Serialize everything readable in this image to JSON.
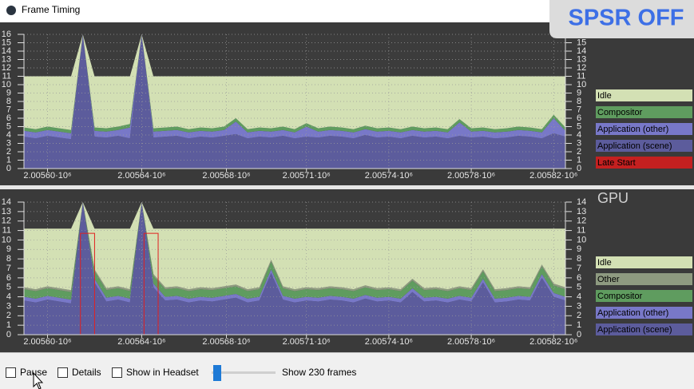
{
  "window": {
    "title": "Frame Timing"
  },
  "overlay": "SPSR OFF",
  "controls": {
    "pause": "Pause",
    "details": "Details",
    "show_in_headset": "Show in Headset",
    "frames": "Show 230 frames"
  },
  "chart_data": [
    {
      "type": "area",
      "stacked": true,
      "grid": true,
      "legend": "right",
      "xlim": [
        2005590,
        2005820
      ],
      "ylim": [
        0,
        16
      ],
      "yticks": [
        0,
        1,
        2,
        3,
        4,
        5,
        6,
        7,
        8,
        9,
        10,
        11,
        12,
        13,
        14,
        15,
        16
      ],
      "xticks": [
        {
          "value": 2005600,
          "label": "2.00560·10⁶"
        },
        {
          "value": 2005640,
          "label": "2.00564·10⁶"
        },
        {
          "value": 2005676,
          "label": "2.00568·10⁶"
        },
        {
          "value": 2005710,
          "label": "2.00571·10⁶"
        },
        {
          "value": 2005745,
          "label": "2.00574·10⁶"
        },
        {
          "value": 2005780,
          "label": "2.00578·10⁶"
        },
        {
          "value": 2005815,
          "label": "2.00582·10⁶"
        }
      ],
      "x": [
        2005590,
        2005595,
        2005600,
        2005605,
        2005610,
        2005615,
        2005620,
        2005625,
        2005630,
        2005635,
        2005640,
        2005645,
        2005650,
        2005655,
        2005660,
        2005665,
        2005670,
        2005675,
        2005680,
        2005685,
        2005690,
        2005695,
        2005700,
        2005705,
        2005710,
        2005715,
        2005720,
        2005725,
        2005730,
        2005735,
        2005740,
        2005745,
        2005750,
        2005755,
        2005760,
        2005765,
        2005770,
        2005775,
        2005780,
        2005785,
        2005790,
        2005795,
        2005800,
        2005805,
        2005810,
        2005815,
        2005820
      ],
      "series": [
        {
          "name": "Idle",
          "color": "#d3e0b4",
          "values": [
            6.1,
            6.3,
            6.0,
            6.2,
            6.4,
            0,
            6.1,
            6.2,
            6.0,
            5.7,
            0,
            6.2,
            6.1,
            6.0,
            6.3,
            6.1,
            6.2,
            6.0,
            5.0,
            6.3,
            6.1,
            6.2,
            6.0,
            6.3,
            5.6,
            6.2,
            6.0,
            6.1,
            6.3,
            5.9,
            6.2,
            6.1,
            6.3,
            6.0,
            6.2,
            6.1,
            6.3,
            5.1,
            6.2,
            6.1,
            6.3,
            6.2,
            6.0,
            6.1,
            6.3,
            4.6,
            6.1
          ]
        },
        {
          "name": "Compositor",
          "color": "#5f9c5f",
          "values": [
            0.4,
            0.4,
            0.4,
            0.4,
            0.4,
            0,
            0.4,
            0.4,
            0.4,
            0.4,
            0,
            0.4,
            0.4,
            0.4,
            0.4,
            0.4,
            0.4,
            0.4,
            0.4,
            0.4,
            0.4,
            0.4,
            0.4,
            0.4,
            0.4,
            0.4,
            0.4,
            0.4,
            0.4,
            0.4,
            0.4,
            0.4,
            0.4,
            0.4,
            0.4,
            0.4,
            0.4,
            0.4,
            0.4,
            0.4,
            0.4,
            0.4,
            0.4,
            0.4,
            0.4,
            0.4,
            0.4
          ]
        },
        {
          "name": "Application (other)",
          "color": "#7878c8",
          "values": [
            0.7,
            0.7,
            0.7,
            0.7,
            0.7,
            0,
            0.7,
            0.7,
            0.7,
            1.3,
            0,
            0.7,
            0.7,
            0.7,
            0.7,
            0.7,
            0.7,
            0.7,
            1.5,
            0.7,
            0.7,
            0.7,
            0.7,
            0.7,
            1.2,
            0.7,
            0.7,
            0.7,
            0.7,
            0.7,
            0.7,
            0.7,
            0.7,
            0.7,
            0.7,
            0.7,
            0.7,
            1.6,
            0.7,
            0.7,
            0.7,
            0.7,
            0.7,
            0.7,
            0.7,
            1.8,
            0.7
          ]
        },
        {
          "name": "Application (scene)",
          "color": "#5c5c9c",
          "values": [
            3.8,
            3.6,
            3.9,
            3.7,
            3.5,
            16,
            3.8,
            3.7,
            3.9,
            3.6,
            16,
            3.7,
            3.8,
            3.9,
            3.6,
            3.8,
            3.7,
            3.9,
            4.1,
            3.6,
            3.8,
            3.7,
            3.9,
            3.6,
            3.8,
            3.7,
            3.9,
            3.8,
            3.6,
            4.0,
            3.7,
            3.8,
            3.6,
            3.9,
            3.7,
            3.8,
            3.6,
            3.9,
            3.7,
            3.8,
            3.6,
            3.7,
            3.9,
            3.8,
            3.6,
            4.2,
            3.8
          ]
        },
        {
          "name": "Late Start",
          "color": "#c42020",
          "values": [
            0,
            0,
            0,
            0,
            0,
            0,
            0,
            0,
            0,
            0,
            0,
            0,
            0,
            0,
            0,
            0,
            0,
            0,
            0,
            0,
            0,
            0,
            0,
            0,
            0,
            0,
            0,
            0,
            0,
            0,
            0,
            0,
            0,
            0,
            0,
            0,
            0,
            0,
            0,
            0,
            0,
            0,
            0,
            0,
            0,
            0,
            0
          ]
        }
      ]
    },
    {
      "type": "area",
      "stacked": true,
      "grid": true,
      "legend": "right",
      "title": "GPU",
      "xlim": [
        2005590,
        2005820
      ],
      "ylim": [
        0,
        14
      ],
      "yticks": [
        0,
        1,
        2,
        3,
        4,
        5,
        6,
        7,
        8,
        9,
        10,
        11,
        12,
        13,
        14
      ],
      "xticks": [
        {
          "value": 2005600,
          "label": "2.00560·10⁶"
        },
        {
          "value": 2005640,
          "label": "2.00564·10⁶"
        },
        {
          "value": 2005676,
          "label": "2.00568·10⁶"
        },
        {
          "value": 2005710,
          "label": "2.00571·10⁶"
        },
        {
          "value": 2005745,
          "label": "2.00574·10⁶"
        },
        {
          "value": 2005780,
          "label": "2.00578·10⁶"
        },
        {
          "value": 2005815,
          "label": "2.00582·10⁶"
        }
      ],
      "x": [
        2005590,
        2005595,
        2005600,
        2005605,
        2005610,
        2005615,
        2005620,
        2005625,
        2005630,
        2005635,
        2005640,
        2005645,
        2005650,
        2005655,
        2005660,
        2005665,
        2005670,
        2005675,
        2005680,
        2005685,
        2005690,
        2005695,
        2005700,
        2005705,
        2005710,
        2005715,
        2005720,
        2005725,
        2005730,
        2005735,
        2005740,
        2005745,
        2005750,
        2005755,
        2005760,
        2005765,
        2005770,
        2005775,
        2005780,
        2005785,
        2005790,
        2005795,
        2005800,
        2005805,
        2005810,
        2005815,
        2005820
      ],
      "series": [
        {
          "name": "Idle",
          "color": "#d3e0b4",
          "values": [
            6.2,
            6.4,
            6.1,
            6.3,
            6.5,
            0,
            4.3,
            6.3,
            6.1,
            6.4,
            0,
            4.8,
            6.2,
            6.1,
            6.4,
            6.2,
            6.3,
            6.1,
            5.9,
            6.4,
            6.2,
            3.3,
            6.1,
            6.4,
            6.2,
            6.3,
            6.1,
            6.2,
            6.4,
            6.0,
            6.3,
            6.2,
            6.4,
            5.3,
            6.3,
            6.2,
            6.4,
            6.1,
            6.3,
            4.3,
            6.4,
            6.3,
            6.1,
            6.2,
            3.8,
            5.8,
            6.2
          ]
        },
        {
          "name": "Other",
          "color": "#8e9a80",
          "values": [
            0.2,
            0.2,
            0.2,
            0.2,
            0.2,
            0,
            0.2,
            0.2,
            0.2,
            0.2,
            0,
            0.2,
            0.2,
            0.2,
            0.2,
            0.2,
            0.2,
            0.2,
            0.2,
            0.2,
            0.2,
            0.2,
            0.2,
            0.2,
            0.2,
            0.2,
            0.2,
            0.2,
            0.2,
            0.2,
            0.2,
            0.2,
            0.2,
            0.2,
            0.2,
            0.2,
            0.2,
            0.2,
            0.2,
            0.2,
            0.2,
            0.2,
            0.2,
            0.2,
            0.2,
            0.2,
            0.2
          ]
        },
        {
          "name": "Compositor",
          "color": "#5f9c5f",
          "values": [
            0.8,
            0.8,
            0.8,
            0.8,
            0.8,
            0,
            0.8,
            0.8,
            0.8,
            0.8,
            0,
            0.8,
            0.8,
            0.8,
            0.8,
            0.8,
            0.8,
            0.8,
            0.8,
            0.8,
            0.8,
            0.8,
            0.8,
            0.8,
            0.8,
            0.8,
            0.8,
            0.8,
            0.8,
            0.8,
            0.8,
            0.8,
            0.8,
            0.8,
            0.8,
            0.8,
            0.8,
            0.8,
            0.8,
            0.8,
            0.8,
            0.8,
            0.8,
            0.8,
            0.8,
            0.8,
            0.8
          ]
        },
        {
          "name": "Application (other)",
          "color": "#7878c8",
          "values": [
            0.4,
            0.4,
            0.4,
            0.4,
            0.4,
            0,
            0.4,
            0.4,
            0.4,
            0.4,
            0,
            0.4,
            0.4,
            0.4,
            0.4,
            0.4,
            0.4,
            0.4,
            0.4,
            0.4,
            0.4,
            0.4,
            0.4,
            0.4,
            0.4,
            0.4,
            0.4,
            0.4,
            0.4,
            0.4,
            0.4,
            0.4,
            0.4,
            0.4,
            0.4,
            0.4,
            0.4,
            0.4,
            0.4,
            0.4,
            0.4,
            0.4,
            0.4,
            0.4,
            0.4,
            0.4,
            0.4
          ]
        },
        {
          "name": "Application (scene)",
          "color": "#5c5c9c",
          "values": [
            3.6,
            3.4,
            3.7,
            3.5,
            3.3,
            14,
            5.5,
            3.5,
            3.7,
            3.4,
            14,
            5.0,
            3.6,
            3.7,
            3.4,
            3.6,
            3.5,
            3.7,
            3.9,
            3.4,
            3.6,
            6.5,
            3.7,
            3.4,
            3.6,
            3.5,
            3.7,
            3.6,
            3.4,
            3.8,
            3.5,
            3.6,
            3.4,
            4.5,
            3.5,
            3.6,
            3.4,
            3.7,
            3.5,
            5.5,
            3.4,
            3.5,
            3.7,
            3.6,
            6.0,
            4.0,
            3.6
          ]
        }
      ],
      "highlights": [
        {
          "x0": 2005614,
          "x1": 2005620,
          "y": 10.7
        },
        {
          "x0": 2005641,
          "x1": 2005647,
          "y": 10.7
        }
      ]
    }
  ]
}
